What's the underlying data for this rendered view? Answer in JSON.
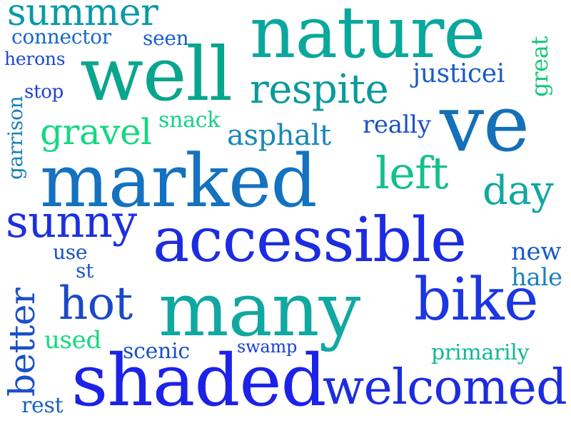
{
  "words": {
    "summer": {
      "text": "summer",
      "color": "#0a9aa8"
    },
    "nature": {
      "text": "nature",
      "color": "#0aa89c"
    },
    "connector": {
      "text": "connector",
      "color": "#1468c8"
    },
    "seen": {
      "text": "seen",
      "color": "#1a5fd0"
    },
    "herons": {
      "text": "herons",
      "color": "#1a48d8"
    },
    "well": {
      "text": "well",
      "color": "#0aa58e"
    },
    "great": {
      "text": "great",
      "color": "#14c87a"
    },
    "justicei": {
      "text": "justicei",
      "color": "#1a5cc8"
    },
    "stop": {
      "text": "stop",
      "color": "#1a40d8"
    },
    "respite": {
      "text": "respite",
      "color": "#0a9a9c"
    },
    "garrison": {
      "text": "garrison",
      "color": "#1a80b8"
    },
    "snack": {
      "text": "snack",
      "color": "#14d08a"
    },
    "ve": {
      "text": "ve",
      "color": "#1470b8"
    },
    "really": {
      "text": "really",
      "color": "#1a50c8"
    },
    "gravel": {
      "text": "gravel",
      "color": "#14d880"
    },
    "asphalt": {
      "text": "asphalt",
      "color": "#1a88b8"
    },
    "marked": {
      "text": "marked",
      "color": "#1472c0"
    },
    "left": {
      "text": "left",
      "color": "#12c08c"
    },
    "day": {
      "text": "day",
      "color": "#10a8a0"
    },
    "sunny": {
      "text": "sunny",
      "color": "#1c30e0"
    },
    "accessible": {
      "text": "accessible",
      "color": "#1c2ce0"
    },
    "use": {
      "text": "use",
      "color": "#1a50c0"
    },
    "new": {
      "text": "new",
      "color": "#1a58c8"
    },
    "st": {
      "text": "st",
      "color": "#1a58c8"
    },
    "better": {
      "text": "better",
      "color": "#1a50c8"
    },
    "hale": {
      "text": "hale",
      "color": "#1a80c0"
    },
    "hot": {
      "text": "hot",
      "color": "#1a48c8"
    },
    "many": {
      "text": "many",
      "color": "#10a8a0"
    },
    "bike": {
      "text": "bike",
      "color": "#1c36e0"
    },
    "used": {
      "text": "used",
      "color": "#14d880"
    },
    "scenic": {
      "text": "scenic",
      "color": "#1a50c8"
    },
    "swamp": {
      "text": "swamp",
      "color": "#1a40d8"
    },
    "primarily": {
      "text": "primarily",
      "color": "#12b898"
    },
    "shaded": {
      "text": "shaded",
      "color": "#1c22e8"
    },
    "welcomed": {
      "text": "welcomed",
      "color": "#1c2ce0"
    },
    "rest": {
      "text": "rest",
      "color": "#1a60c0"
    }
  }
}
